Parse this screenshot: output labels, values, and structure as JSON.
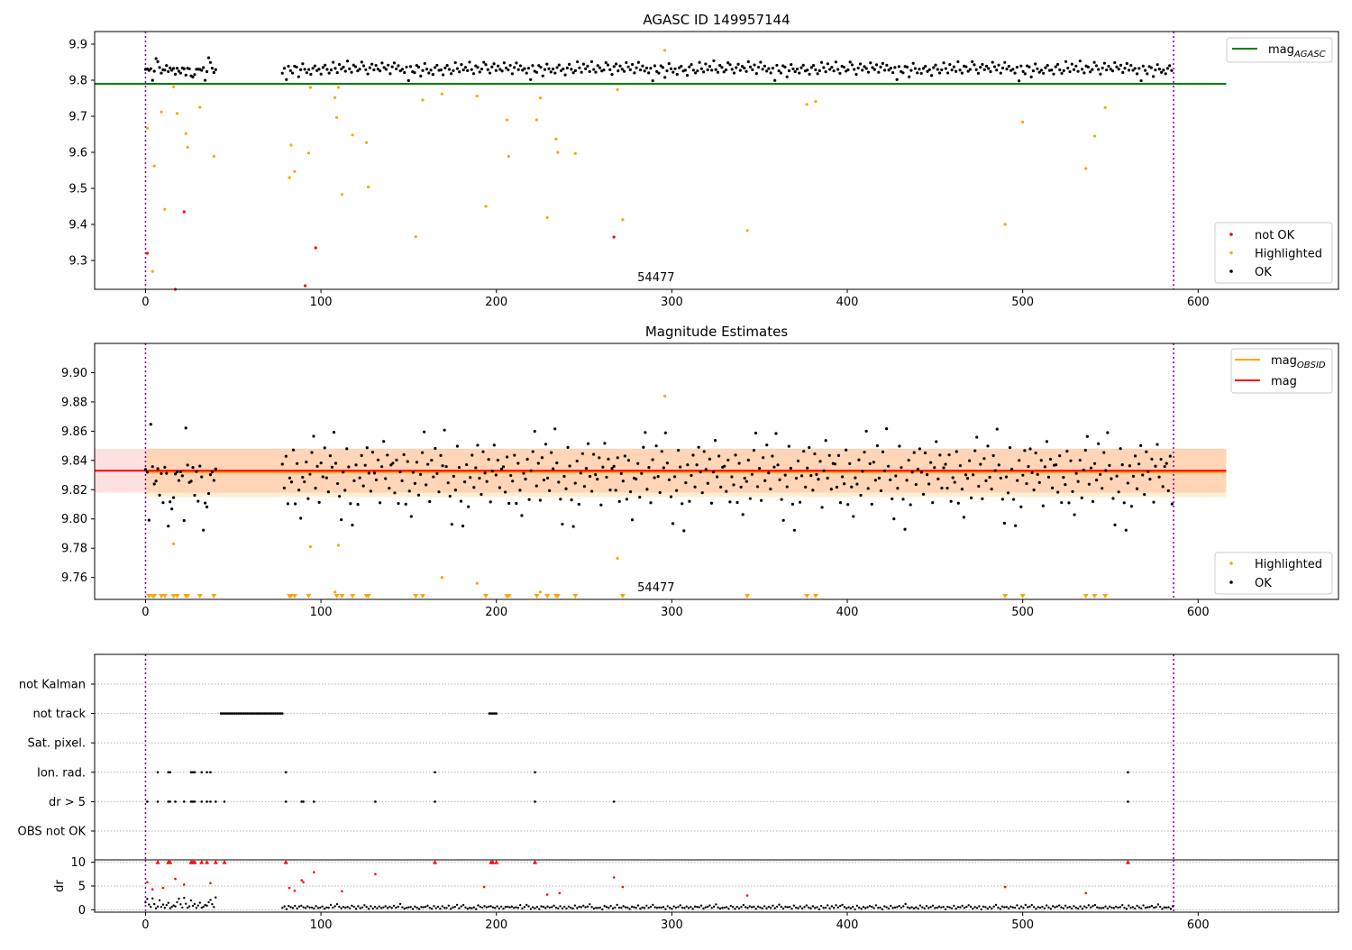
{
  "chart_data": [
    {
      "type": "scatter",
      "title": "AGASC ID 149957144",
      "xlabel": "",
      "ylabel": "",
      "xlim": [
        -29,
        680
      ],
      "ylim": [
        9.22,
        9.935
      ],
      "xticks": [
        0,
        100,
        200,
        300,
        400,
        500,
        600
      ],
      "yticks": [
        9.3,
        9.4,
        9.5,
        9.6,
        9.7,
        9.8,
        9.9
      ],
      "annotation": "54477",
      "vlines": [
        0,
        586
      ],
      "mag_agasc": 9.79,
      "mag_agasc_range": [
        0,
        616
      ],
      "legend_top": {
        "label": "mag",
        "sub": "AGASC",
        "color": "#008000"
      },
      "legend_bottom": [
        {
          "label": "not OK",
          "color": "#ff0000"
        },
        {
          "label": "Highlighted",
          "color": "#ffa500"
        },
        {
          "label": "OK",
          "color": "#000000"
        }
      ],
      "series": [
        {
          "name": "not OK",
          "color": "#ff0000",
          "points": [
            [
              1,
              9.32
            ],
            [
              17,
              9.22
            ],
            [
              22,
              9.435
            ],
            [
              91,
              9.23
            ],
            [
              97,
              9.335
            ],
            [
              267,
              9.365
            ]
          ]
        },
        {
          "name": "Highlighted",
          "color": "#ffa500",
          "points": [
            [
              1,
              9.667
            ],
            [
              4,
              9.27
            ],
            [
              5,
              9.562
            ],
            [
              9,
              9.712
            ],
            [
              11,
              9.442
            ],
            [
              16,
              9.782
            ],
            [
              18,
              9.708
            ],
            [
              23,
              9.652
            ],
            [
              24,
              9.614
            ],
            [
              31,
              9.725
            ],
            [
              39,
              9.589
            ],
            [
              82,
              9.53
            ],
            [
              83,
              9.62
            ],
            [
              85,
              9.547
            ],
            [
              93,
              9.598
            ],
            [
              94,
              9.78
            ],
            [
              108,
              9.752
            ],
            [
              109,
              9.697
            ],
            [
              110,
              9.78
            ],
            [
              112,
              9.483
            ],
            [
              118,
              9.648
            ],
            [
              126,
              9.627
            ],
            [
              127,
              9.504
            ],
            [
              154,
              9.366
            ],
            [
              158,
              9.745
            ],
            [
              169,
              9.762
            ],
            [
              189,
              9.756
            ],
            [
              194,
              9.45
            ],
            [
              206,
              9.69
            ],
            [
              207,
              9.589
            ],
            [
              223,
              9.69
            ],
            [
              225,
              9.751
            ],
            [
              229,
              9.419
            ],
            [
              234,
              9.637
            ],
            [
              235,
              9.6
            ],
            [
              245,
              9.597
            ],
            [
              269,
              9.774
            ],
            [
              272,
              9.413
            ],
            [
              296,
              9.883
            ],
            [
              343,
              9.383
            ],
            [
              377,
              9.733
            ],
            [
              382,
              9.741
            ],
            [
              490,
              9.4
            ],
            [
              500,
              9.684
            ],
            [
              536,
              9.555
            ],
            [
              541,
              9.645
            ],
            [
              547,
              9.724
            ]
          ]
        }
      ],
      "ok_series": {
        "name": "OK",
        "color": "#000000",
        "segments": [
          {
            "x_start": 0,
            "x_end": 40,
            "step": 1,
            "values": [
              9.83,
              9.831,
              9.829,
              9.833,
              9.8,
              9.825,
              9.862,
              9.85,
              9.835,
              9.82,
              9.83,
              9.827,
              9.84,
              9.826,
              9.834,
              9.829,
              9.832,
              9.818,
              9.833,
              9.825,
              9.821,
              9.836,
              9.83,
              9.812,
              9.835,
              9.832,
              9.81,
              9.81,
              9.816,
              9.83
            ]
          },
          {
            "x_start": 78,
            "x_end": 586,
            "step": 1.16,
            "values": [
              9.82,
              9.835,
              9.8,
              9.84,
              9.825,
              9.82,
              9.84,
              9.836,
              9.81,
              9.828,
              9.845,
              9.832,
              9.822,
              9.83,
              9.818,
              9.835,
              9.84,
              9.826,
              9.83,
              9.815,
              9.836,
              9.842,
              9.83,
              9.82,
              9.827,
              9.85,
              9.833,
              9.822,
              9.845,
              9.83,
              9.838,
              9.826,
              9.852,
              9.83,
              9.82,
              9.84,
              9.836,
              9.825,
              9.83,
              9.85,
              9.842,
              9.83,
              9.818,
              9.836,
              9.845,
              9.828,
              9.84,
              9.832,
              9.824,
              9.85,
              9.836,
              9.83,
              9.842,
              9.82,
              9.835,
              9.848,
              9.83,
              9.84,
              9.826,
              9.832
            ]
          }
        ]
      }
    },
    {
      "type": "scatter",
      "title": "Magnitude Estimates",
      "xlabel": "",
      "ylabel": "",
      "xlim": [
        -29,
        680
      ],
      "ylim": [
        9.745,
        9.92
      ],
      "xticks": [
        0,
        100,
        200,
        300,
        400,
        500,
        600
      ],
      "yticks": [
        9.76,
        9.78,
        9.8,
        9.82,
        9.84,
        9.86,
        9.88,
        9.9
      ],
      "annotation": "54477",
      "vlines": [
        0,
        586
      ],
      "mag": 9.833,
      "mag_band": [
        9.818,
        9.848
      ],
      "mag_obsid": 9.832,
      "mag_obsid_band": [
        9.815,
        9.848
      ],
      "line_range": [
        -29,
        616
      ],
      "legend_top": [
        {
          "label": "mag",
          "sub": "OBSID",
          "color": "#ffa500"
        },
        {
          "label": "mag",
          "sub": "",
          "color": "#ff0000"
        }
      ],
      "legend_bottom": [
        {
          "label": "Highlighted",
          "color": "#ffa500"
        },
        {
          "label": "OK",
          "color": "#000000"
        }
      ],
      "series": [
        {
          "name": "Highlighted",
          "color": "#ffa500",
          "points": [
            [
              16,
              9.783
            ],
            [
              94,
              9.781
            ],
            [
              108,
              9.75
            ],
            [
              110,
              9.782
            ],
            [
              169,
              9.76
            ],
            [
              189,
              9.756
            ],
            [
              225,
              9.75
            ],
            [
              269,
              9.773
            ],
            [
              296,
              9.884
            ]
          ]
        }
      ],
      "offscale_x": [
        2,
        4,
        5,
        9,
        11,
        16,
        18,
        23,
        24,
        31,
        39,
        82,
        83,
        85,
        93,
        109,
        112,
        118,
        126,
        127,
        154,
        158,
        194,
        206,
        207,
        223,
        229,
        234,
        235,
        245,
        272,
        343,
        377,
        382,
        490,
        500,
        536,
        541,
        547
      ],
      "ok_series": {
        "name": "OK",
        "color": "#000000",
        "segments": [
          {
            "x_start": 0,
            "x_end": 40,
            "step": 1,
            "values": [
              9.833,
              9.83,
              9.8,
              9.863,
              9.835,
              9.823,
              9.828,
              9.836,
              9.817,
              9.831,
              9.81,
              9.835,
              9.83,
              9.793,
              9.81,
              9.808,
              9.816,
              9.83,
              9.833,
              9.825
            ]
          },
          {
            "x_start": 78,
            "x_end": 586,
            "step": 1.05,
            "values": [
              9.836,
              9.82,
              9.842,
              9.81,
              9.83,
              9.824,
              9.845,
              9.812,
              9.838,
              9.82,
              9.801,
              9.83,
              9.826,
              9.84,
              9.815,
              9.832,
              9.847,
              9.858,
              9.822,
              9.836,
              9.812,
              9.84,
              9.828,
              9.85,
              9.83,
              9.82,
              9.845,
              9.835,
              9.86,
              9.838,
              9.826,
              9.815,
              9.798,
              9.83,
              9.82,
              9.848,
              9.835,
              9.812,
              9.794,
              9.826,
              9.838,
              9.81,
              9.83,
              9.845,
              9.822,
              9.836,
              9.85,
              9.83,
              9.818,
              9.844,
              9.832,
              9.826,
              9.84,
              9.81,
              9.834,
              9.852,
              9.828,
              9.842,
              9.82,
              9.836
            ]
          }
        ]
      }
    },
    {
      "type": "scatter",
      "title": "",
      "xlim": [
        -29,
        680
      ],
      "xticks": [
        0,
        100,
        200,
        300,
        400,
        500,
        600
      ],
      "vlines": [
        0,
        586
      ],
      "flag_rows": [
        "not Kalman",
        "not track",
        "Sat. pixel.",
        "Ion. rad.",
        "dr > 5",
        "OBS not OK"
      ],
      "flags": {
        "not Kalman": [],
        "not track": {
          "ranges": [
            [
              43,
              78
            ],
            [
              196,
              200
            ]
          ],
          "step": 1
        },
        "Sat. pixel.": [],
        "Ion. rad.": [
          7,
          13,
          14,
          26,
          27,
          28,
          32,
          35,
          37,
          80,
          165,
          222,
          560
        ],
        "dr > 5": [
          1,
          7,
          13,
          14,
          17,
          22,
          26,
          27,
          28,
          32,
          35,
          37,
          40,
          45,
          80,
          89,
          90,
          96,
          131,
          165,
          222,
          267,
          560
        ],
        "OBS not OK": []
      }
    },
    {
      "type": "scatter",
      "title": "",
      "ylabel": "dr",
      "xlim": [
        -29,
        680
      ],
      "ylim": [
        -0.5,
        10.5
      ],
      "yticks": [
        0,
        5,
        10
      ],
      "xticks": [
        0,
        100,
        200,
        300,
        400,
        500,
        600
      ],
      "vlines": [
        0,
        586
      ],
      "series": [
        {
          "name": "dr > 5",
          "color": "#ff0000",
          "points": [
            [
              1,
              5.8
            ],
            [
              4,
              4.3
            ],
            [
              7,
              10
            ],
            [
              10,
              4.6
            ],
            [
              13,
              10
            ],
            [
              14,
              10
            ],
            [
              17,
              6.5
            ],
            [
              22,
              5.3
            ],
            [
              26,
              10
            ],
            [
              27,
              10
            ],
            [
              28,
              10
            ],
            [
              32,
              10
            ],
            [
              35,
              10
            ],
            [
              37,
              5.6
            ],
            [
              40,
              10
            ],
            [
              45,
              10
            ],
            [
              80,
              10
            ],
            [
              82,
              4.6
            ],
            [
              85,
              4
            ],
            [
              89,
              6.2
            ],
            [
              90,
              5.8
            ],
            [
              96,
              7.9
            ],
            [
              112,
              3.9
            ],
            [
              131,
              7.5
            ],
            [
              165,
              10
            ],
            [
              193,
              4.8
            ],
            [
              197,
              10
            ],
            [
              198,
              10
            ],
            [
              200,
              10
            ],
            [
              222,
              10
            ],
            [
              229,
              3.2
            ],
            [
              236,
              3.5
            ],
            [
              267,
              6.8
            ],
            [
              272,
              4.8
            ],
            [
              343,
              3
            ],
            [
              490,
              4.8
            ],
            [
              536,
              3.5
            ],
            [
              560,
              10
            ]
          ]
        }
      ],
      "ok_series": {
        "name": "OK",
        "color": "#000000",
        "segments": [
          {
            "x_start": 0,
            "x_end": 40,
            "step": 1,
            "values": [
              1.5,
              2.2,
              1.1,
              0.6,
              2.5,
              1.3,
              0.4,
              0.8,
              1.9,
              0.7,
              1.2,
              0.5,
              0.9,
              1.4,
              0.3,
              0.6,
              1.0,
              0.8
            ]
          },
          {
            "x_start": 78,
            "x_end": 586,
            "step": 1.2,
            "values": [
              0.4,
              0.6,
              0.2,
              0.8,
              0.5,
              0.3,
              0.7,
              0.4,
              0.6,
              0.9,
              0.5,
              0.3,
              0.8,
              0.4,
              0.6,
              0.2,
              0.7,
              0.5,
              0.4,
              0.8,
              0.3,
              0.6,
              0.5,
              0.9,
              0.4,
              0.7,
              1.1,
              0.6,
              0.3,
              0.5
            ]
          }
        ]
      }
    }
  ]
}
